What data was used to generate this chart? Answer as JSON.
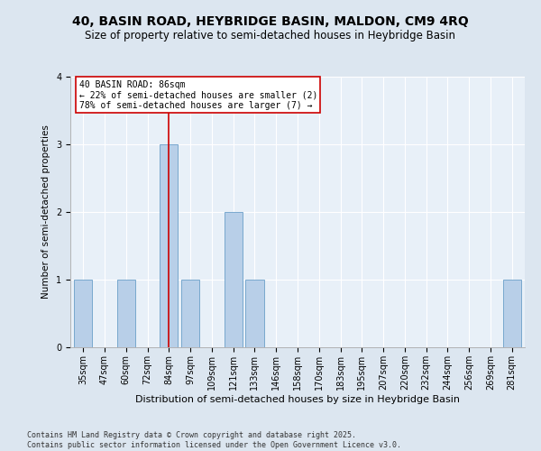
{
  "title1": "40, BASIN ROAD, HEYBRIDGE BASIN, MALDON, CM9 4RQ",
  "title2": "Size of property relative to semi-detached houses in Heybridge Basin",
  "xlabel": "Distribution of semi-detached houses by size in Heybridge Basin",
  "ylabel": "Number of semi-detached properties",
  "categories": [
    "35sqm",
    "47sqm",
    "60sqm",
    "72sqm",
    "84sqm",
    "97sqm",
    "109sqm",
    "121sqm",
    "133sqm",
    "146sqm",
    "158sqm",
    "170sqm",
    "183sqm",
    "195sqm",
    "207sqm",
    "220sqm",
    "232sqm",
    "244sqm",
    "256sqm",
    "269sqm",
    "281sqm"
  ],
  "values": [
    1,
    0,
    1,
    0,
    3,
    1,
    0,
    2,
    1,
    0,
    0,
    0,
    0,
    0,
    0,
    0,
    0,
    0,
    0,
    0,
    1
  ],
  "bar_color": "#b8cfe8",
  "bar_edge_color": "#6a9fc8",
  "subject_index": 4,
  "subject_label": "40 BASIN ROAD: 86sqm",
  "annotation_line1": "← 22% of semi-detached houses are smaller (2)",
  "annotation_line2": "78% of semi-detached houses are larger (7) →",
  "vline_color": "#cc0000",
  "annotation_box_color": "#cc0000",
  "ylim": [
    0,
    4
  ],
  "yticks": [
    0,
    1,
    2,
    3,
    4
  ],
  "footnote1": "Contains HM Land Registry data © Crown copyright and database right 2025.",
  "footnote2": "Contains public sector information licensed under the Open Government Licence v3.0.",
  "bg_color": "#dce6f0",
  "plot_bg_color": "#e8f0f8",
  "title1_fontsize": 10,
  "title2_fontsize": 8.5,
  "xlabel_fontsize": 8,
  "ylabel_fontsize": 7.5,
  "tick_fontsize": 7,
  "footnote_fontsize": 6,
  "annot_fontsize": 7
}
